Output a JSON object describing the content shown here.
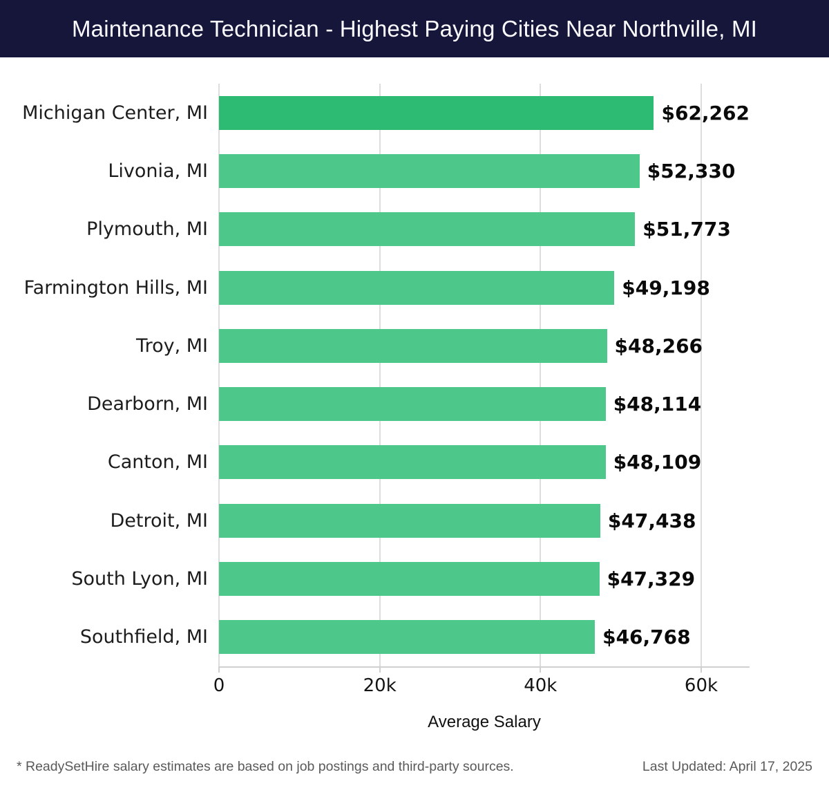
{
  "header": {
    "title": "Maintenance Technician - Highest Paying Cities Near Northville, MI",
    "bg_color": "#15163a",
    "text_color": "#fafaff"
  },
  "chart_data": {
    "type": "bar",
    "orientation": "horizontal",
    "title": "Maintenance Technician - Highest Paying Cities Near Northville, MI",
    "xlabel": "Average Salary",
    "ylabel": "",
    "xlim": [
      0,
      66000
    ],
    "grid": true,
    "legend": "none",
    "categories": [
      "Michigan Center, MI",
      "Livonia, MI",
      "Plymouth, MI",
      "Farmington Hills, MI",
      "Troy, MI",
      "Dearborn, MI",
      "Canton, MI",
      "Detroit, MI",
      "South Lyon, MI",
      "Southfield, MI"
    ],
    "values": [
      62262,
      52330,
      51773,
      49198,
      48266,
      48114,
      48109,
      47438,
      47329,
      46768
    ],
    "rows": [
      {
        "city": "Michigan Center, MI",
        "value": 62262,
        "value_label": "$62,262",
        "color": "#2dba73"
      },
      {
        "city": "Livonia, MI",
        "value": 52330,
        "value_label": "$52,330",
        "color": "#4dc78a"
      },
      {
        "city": "Plymouth, MI",
        "value": 51773,
        "value_label": "$51,773",
        "color": "#4dc78a"
      },
      {
        "city": "Farmington Hills, MI",
        "value": 49198,
        "value_label": "$49,198",
        "color": "#4dc78a"
      },
      {
        "city": "Troy, MI",
        "value": 48266,
        "value_label": "$48,266",
        "color": "#4dc78a"
      },
      {
        "city": "Dearborn, MI",
        "value": 48114,
        "value_label": "$48,114",
        "color": "#4dc78a"
      },
      {
        "city": "Canton, MI",
        "value": 48109,
        "value_label": "$48,109",
        "color": "#4dc78a"
      },
      {
        "city": "Detroit, MI",
        "value": 47438,
        "value_label": "$47,438",
        "color": "#4dc78a"
      },
      {
        "city": "South Lyon, MI",
        "value": 47329,
        "value_label": "$47,329",
        "color": "#4dc78a"
      },
      {
        "city": "Southfield, MI",
        "value": 46768,
        "value_label": "$46,768",
        "color": "#4dc78a"
      }
    ],
    "ticks": [
      {
        "label": "0",
        "value": 0
      },
      {
        "label": "20k",
        "value": 20000
      },
      {
        "label": "40k",
        "value": 40000
      },
      {
        "label": "60k",
        "value": 60000
      }
    ],
    "colors": {
      "bar_highlight": "#2dba73",
      "bar_default": "#4dc78a",
      "gridline": "#dddddd",
      "axis_line": "#d0d0d0"
    }
  },
  "footer": {
    "disclaimer": "* ReadySetHire salary estimates are based on job postings and third-party sources.",
    "last_updated": "Last Updated: April 17, 2025"
  }
}
